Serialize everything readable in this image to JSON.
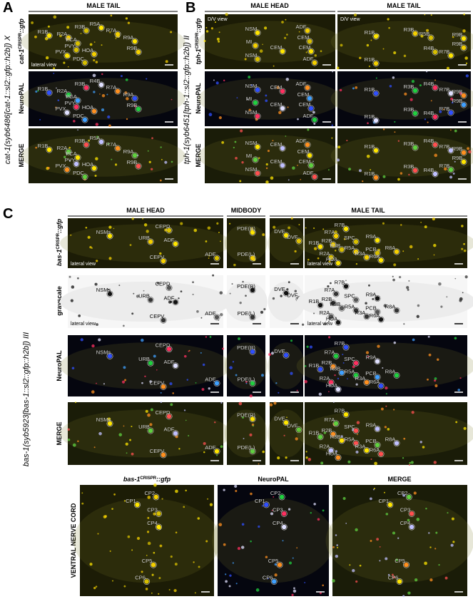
{
  "panel_a": {
    "letter": "A",
    "header": "MALE TAIL",
    "genotype": "cat-1(syb6486[cat-1::sl2::gfp::h2b]) X",
    "reporter": {
      "gene": "cat-1",
      "sup": "CRISPR",
      "rest": "::gfp"
    },
    "row_labels": [
      "NeuroPAL",
      "MERGE"
    ],
    "images": [
      {
        "labels": [
          "R1B",
          "R2A",
          "R3B",
          "R5A",
          "R7A",
          "PCA",
          "R9A",
          "R9B",
          "PVY",
          "PVX",
          "HOA",
          "PDC"
        ],
        "view": "lateral view"
      },
      {
        "labels": [
          "R1B",
          "R2A",
          "R3B",
          "R4B",
          "R7A",
          "PGA",
          "R9A",
          "R9B",
          "PVY",
          "PVX",
          "HOA",
          "PDC"
        ]
      },
      {
        "labels": [
          "R1B",
          "R2A",
          "R3B",
          "R5A",
          "R7A",
          "PCA",
          "R9A",
          "R9B",
          "PVY",
          "PVX",
          "HOA",
          "PDC"
        ]
      }
    ]
  },
  "panel_b": {
    "letter": "B",
    "headers": [
      "MALE HEAD",
      "MALE TAIL"
    ],
    "genotype": "tph-1(syb6451[tph-1::sl2::gfp::h2b]) II",
    "reporter": {
      "gene": "tph-1",
      "sup": "CRISPR",
      "rest": "::gfp"
    },
    "row_labels": [
      "NeuroPAL",
      "MERGE"
    ],
    "head_images": [
      {
        "labels": [
          "NSM",
          "MI",
          "NSM",
          "CEM",
          "ADF",
          "CEM",
          "CEM",
          "ADF"
        ],
        "view": "D/V view"
      },
      {
        "labels": [
          "NSM",
          "MI",
          "NSM",
          "CEM",
          "ADF",
          "CEM",
          "CEM",
          "ADF",
          "CEM"
        ]
      },
      {
        "labels": [
          "NSM",
          "MI",
          "NSM",
          "CEM",
          "ADF",
          "CEM",
          "CEM",
          "ADF",
          "CEM"
        ]
      }
    ],
    "tail_images": [
      {
        "labels": [
          "R1B",
          "R3B",
          "R5B",
          "R9B",
          "R9B",
          "R4B",
          "R7B",
          "R1B"
        ],
        "view": "D/V view"
      },
      {
        "labels": [
          "R1B",
          "R3B",
          "R4B",
          "R7B",
          "R9B",
          "R9B",
          "R7B",
          "R3B",
          "R4B",
          "R1B"
        ]
      },
      {
        "labels": [
          "R1B",
          "R3B",
          "R4B",
          "R7B",
          "R9B",
          "R9B",
          "R7B",
          "R3B",
          "R4B",
          "R1B"
        ]
      }
    ]
  },
  "panel_c": {
    "letter": "C",
    "headers": [
      "MALE HEAD",
      "MIDBODY",
      "MALE TAIL"
    ],
    "genotype": "bas-1(syb5923[bas-1::sl2::gfp::h2b]) III",
    "reporter": {
      "gene": "bas-1",
      "sup": "CRISPR",
      "rest": "::gfp"
    },
    "row_labels": [
      "grayscale",
      "NeuroPAL",
      "MERGE"
    ],
    "rows": [
      {
        "head": {
          "labels": [
            "NSMs",
            "URB",
            "CEPD",
            "ADF",
            "CEPV",
            "ADE"
          ],
          "view": "lateral view"
        },
        "midbody": {
          "labels": [
            "PDE(R)",
            "PDE(L)"
          ]
        },
        "tail_left": {
          "labels": [
            "DVE",
            "DVF"
          ]
        },
        "tail_right": {
          "labels": [
            "R7B",
            "R7A",
            "SPC",
            "R9A",
            "R2B",
            "R3B",
            "R1B",
            "R5A",
            "R2A",
            "HOA",
            "R3A",
            "PCB",
            "R6A",
            "R8A"
          ],
          "view": "lateral view"
        }
      },
      {
        "head": {
          "labels": [
            "NSMs",
            "URB",
            "CEPD",
            "ADF",
            "CEPV",
            "ADE"
          ],
          "view": "lateral view"
        },
        "midbody": {
          "labels": [
            "PDE(R)",
            "PDE(L)"
          ]
        },
        "tail_left": {
          "labels": [
            "DVE",
            "DVF"
          ]
        },
        "tail_right": {
          "labels": [
            "R7B",
            "R7A",
            "SPC",
            "R9A",
            "R2B",
            "R3B",
            "R1B",
            "R5A",
            "R2A",
            "HOA",
            "R3A",
            "PCB",
            "R6A",
            "R8A"
          ],
          "view": "lateral view"
        }
      },
      {
        "head": {
          "labels": [
            "NSMs",
            "URB",
            "CEPD",
            "ADF",
            "CEPV",
            "ADE"
          ]
        },
        "midbody": {
          "labels": [
            "PDE(R)",
            "PDE(L)"
          ]
        },
        "tail_left": {
          "labels": [
            "DVE"
          ]
        },
        "tail_right": {
          "labels": [
            "R7B",
            "R7A",
            "SPC",
            "R9A",
            "R2B",
            "R3B",
            "R1B",
            "R5A",
            "R2A",
            "HOA",
            "R3A",
            "PCB",
            "R6A",
            "R8A"
          ]
        }
      },
      {
        "head": {
          "labels": [
            "NSMs",
            "URB",
            "CEPD",
            "ADF",
            "CEPV",
            "ADE"
          ]
        },
        "midbody": {
          "labels": [
            "PDE(R)",
            "PDE(L)"
          ]
        },
        "tail_left": {
          "labels": [
            "DVE",
            "DVF"
          ]
        },
        "tail_right": {
          "labels": [
            "R7B",
            "R7A",
            "SPC",
            "R9A",
            "R2B",
            "R3B",
            "R1B",
            "R5A",
            "R2A",
            "HOA",
            "R3A",
            "PCB",
            "R6A",
            "R8A"
          ]
        }
      }
    ],
    "vnc": {
      "side_label": "VENTRAL NERVE CORD",
      "images": [
        {
          "labels": [
            "CP1",
            "CP2",
            "CP3",
            "CP4",
            "CP5",
            "CP6"
          ]
        },
        {
          "labels": [
            "CP1",
            "CP2",
            "CP3",
            "CP4",
            "CP5",
            "CP6"
          ]
        },
        {
          "labels": [
            "CP1",
            "CP2",
            "CP3",
            "CP4",
            "CP5",
            "CP6"
          ]
        }
      ]
    }
  }
}
